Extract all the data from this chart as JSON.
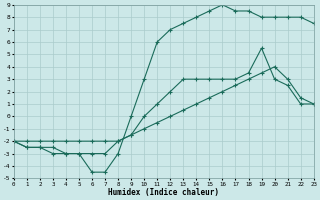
{
  "xlabel": "Humidex (Indice chaleur)",
  "background_color": "#cce8e8",
  "grid_color": "#aacccc",
  "line_color": "#1a6b5a",
  "xlim": [
    0,
    23
  ],
  "ylim": [
    -5,
    9
  ],
  "xticks": [
    0,
    1,
    2,
    3,
    4,
    5,
    6,
    7,
    8,
    9,
    10,
    11,
    12,
    13,
    14,
    15,
    16,
    17,
    18,
    19,
    20,
    21,
    22,
    23
  ],
  "yticks": [
    -5,
    -4,
    -3,
    -2,
    -1,
    0,
    1,
    2,
    3,
    4,
    5,
    6,
    7,
    8,
    9
  ],
  "line1_x": [
    0,
    1,
    2,
    3,
    4,
    5,
    6,
    7,
    8,
    9,
    10,
    11,
    12,
    13,
    14,
    15,
    16,
    17,
    18,
    19,
    20,
    21,
    22,
    23
  ],
  "line1_y": [
    -2,
    -2.5,
    -2.5,
    -2.5,
    -3,
    -3,
    -4.5,
    -4.5,
    -3,
    0,
    3,
    6,
    7,
    7.5,
    8,
    8.5,
    9,
    8.5,
    8.5,
    8,
    8,
    8,
    8,
    7.5
  ],
  "line2_x": [
    0,
    1,
    2,
    3,
    4,
    5,
    6,
    7,
    8,
    9,
    10,
    11,
    12,
    13,
    14,
    15,
    16,
    17,
    18,
    19,
    20,
    21,
    22,
    23
  ],
  "line2_y": [
    -2,
    -2.5,
    -2.5,
    -3,
    -3,
    -3,
    -3,
    -3,
    -2,
    -1.5,
    0,
    1,
    2,
    3,
    3,
    3,
    3,
    3,
    3.5,
    5.5,
    3,
    2.5,
    1,
    1
  ],
  "line3_x": [
    0,
    1,
    2,
    3,
    4,
    5,
    6,
    7,
    8,
    9,
    10,
    11,
    12,
    13,
    14,
    15,
    16,
    17,
    18,
    19,
    20,
    21,
    22,
    23
  ],
  "line3_y": [
    -2,
    -2,
    -2,
    -2,
    -2,
    -2,
    -2,
    -2,
    -2,
    -1.5,
    -1,
    -0.5,
    0,
    0.5,
    1,
    1.5,
    2,
    2.5,
    3,
    3.5,
    4,
    3,
    1.5,
    1
  ]
}
